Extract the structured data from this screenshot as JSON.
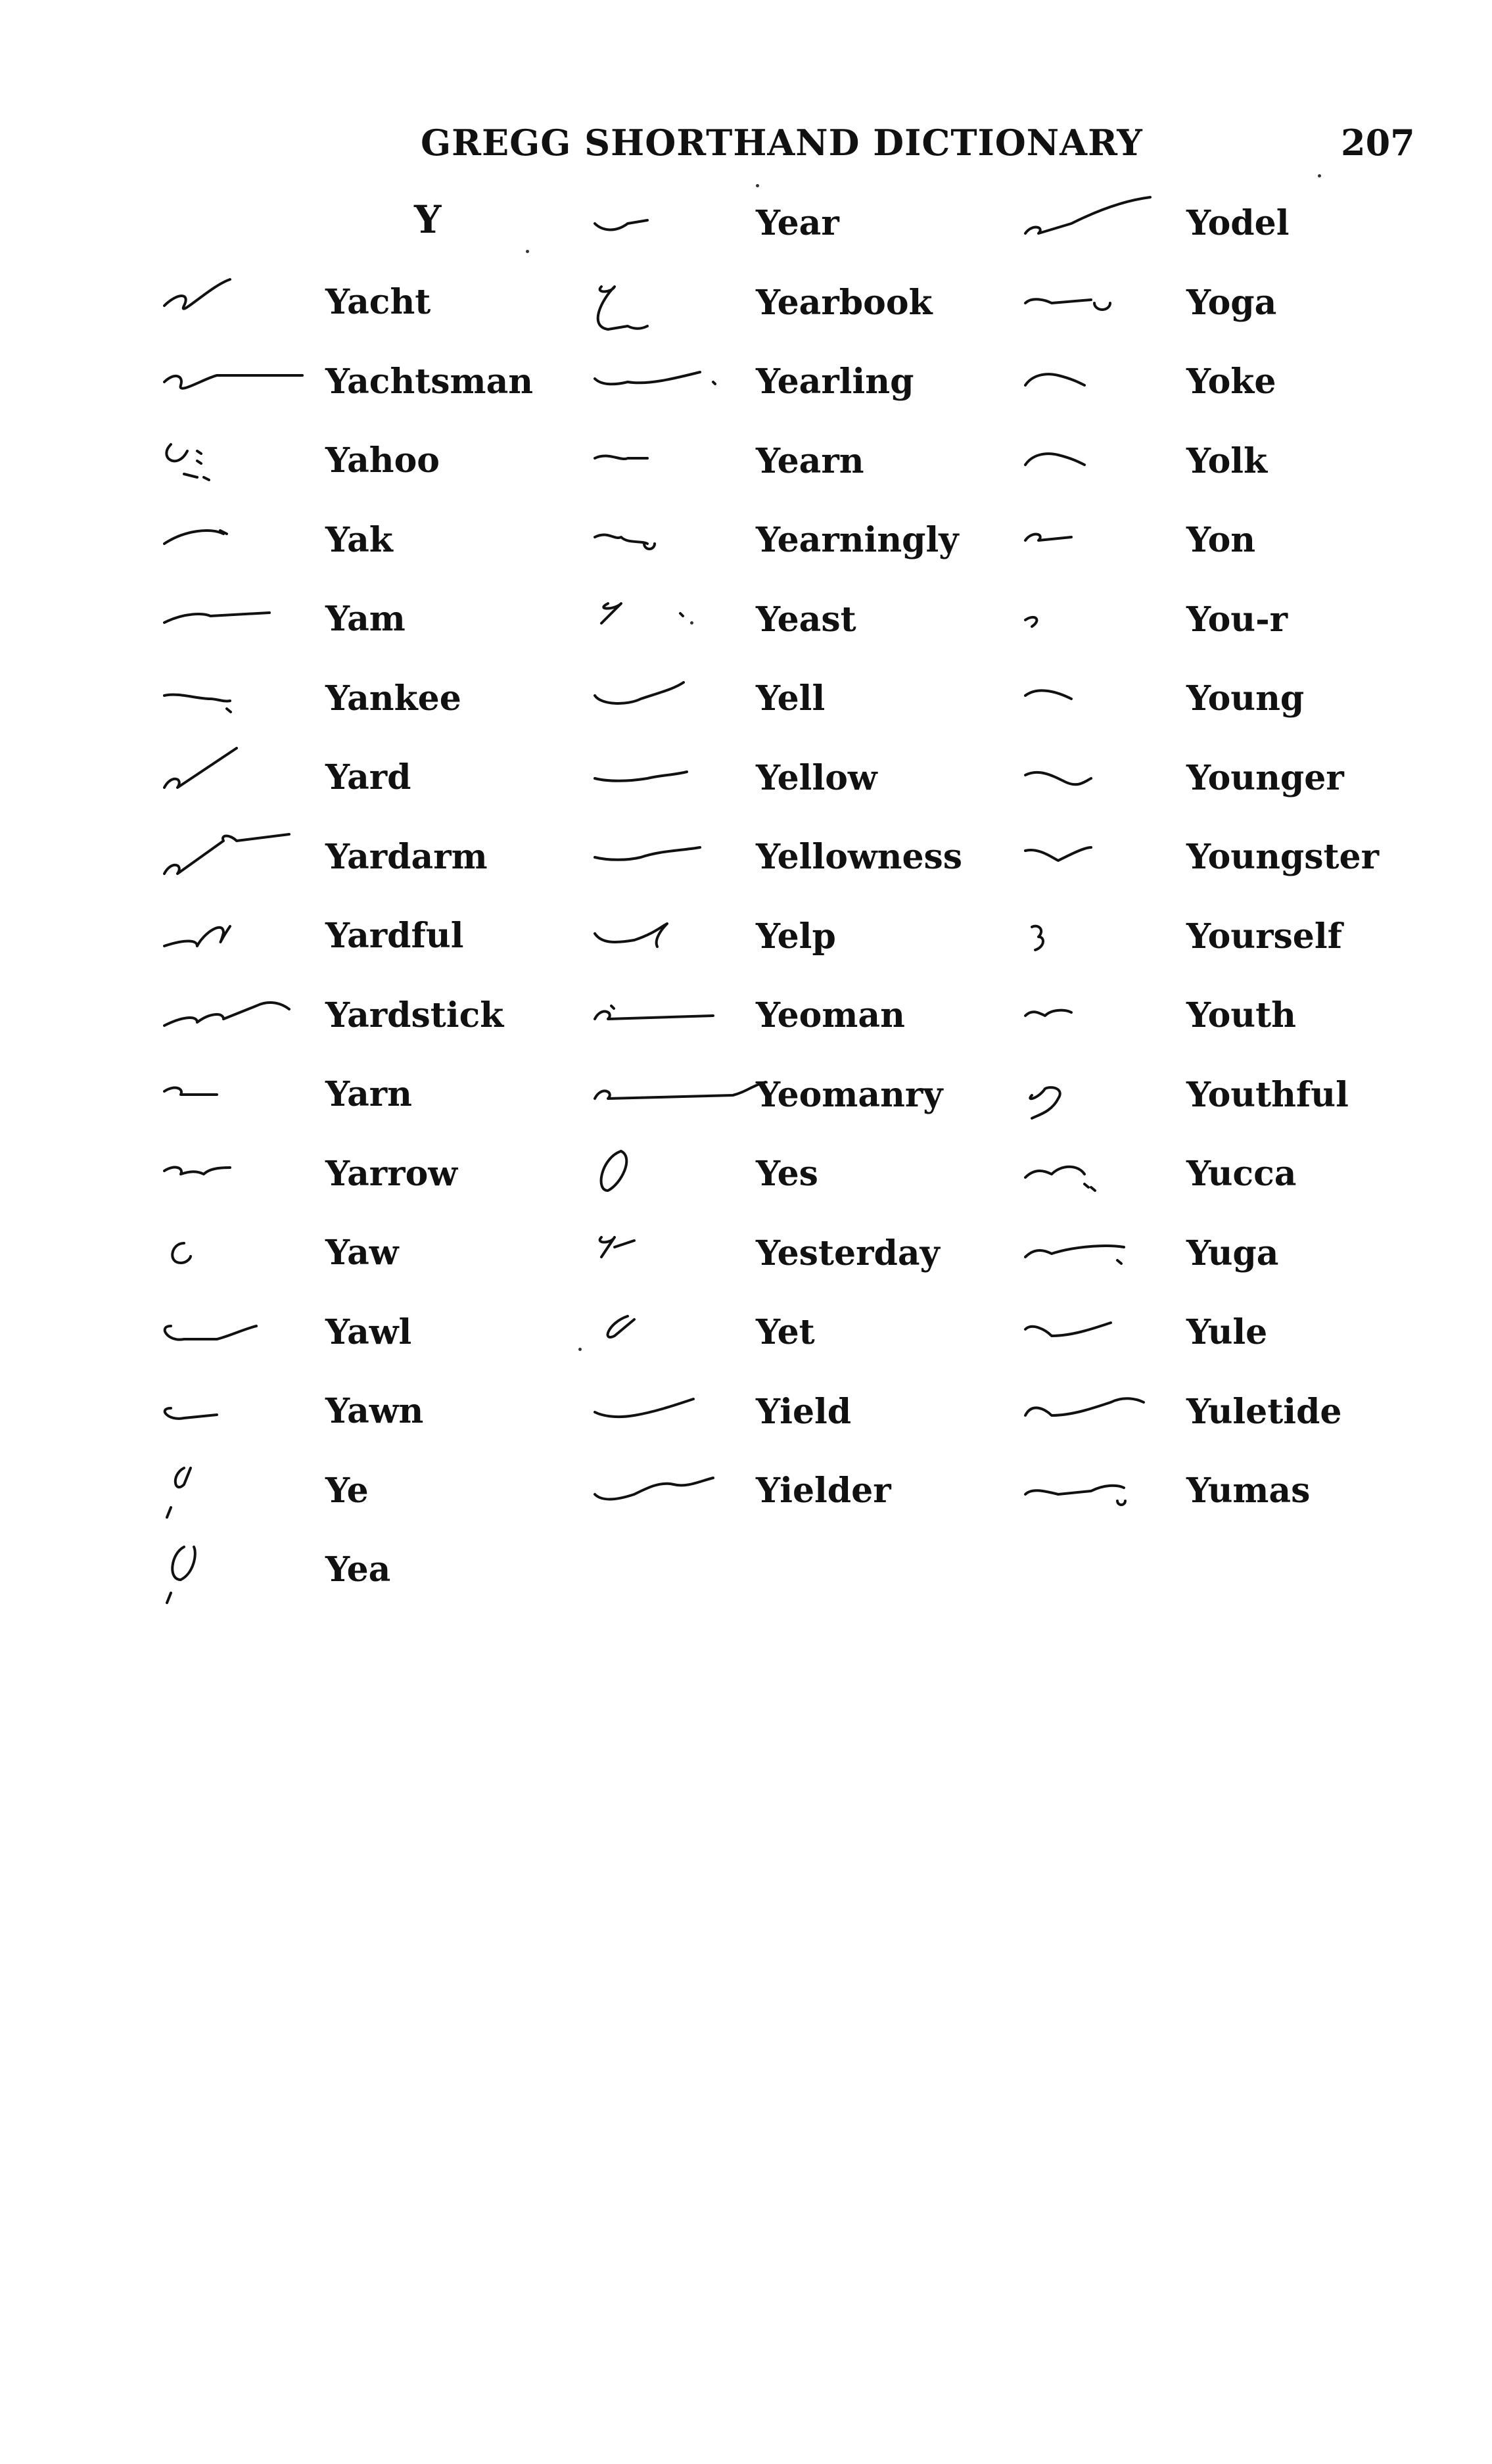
{
  "header": {
    "title": "GREGG SHORTHAND DICTIONARY",
    "page_number": "207"
  },
  "section_letter": "Y",
  "columns": [
    {
      "entries": [
        {
          "word": "Yacht"
        },
        {
          "word": "Yachtsman"
        },
        {
          "word": "Yahoo"
        },
        {
          "word": "Yak"
        },
        {
          "word": "Yam"
        },
        {
          "word": "Yankee"
        },
        {
          "word": "Yard"
        },
        {
          "word": "Yardarm"
        },
        {
          "word": "Yardful"
        },
        {
          "word": "Yardstick"
        },
        {
          "word": "Yarn"
        },
        {
          "word": "Yarrow"
        },
        {
          "word": "Yaw"
        },
        {
          "word": "Yawl"
        },
        {
          "word": "Yawn"
        },
        {
          "word": "Ye"
        },
        {
          "word": "Yea"
        }
      ]
    },
    {
      "entries": [
        {
          "word": "Year"
        },
        {
          "word": "Yearbook"
        },
        {
          "word": "Yearling"
        },
        {
          "word": "Yearn"
        },
        {
          "word": "Yearningly"
        },
        {
          "word": "Yeast"
        },
        {
          "word": "Yell"
        },
        {
          "word": "Yellow"
        },
        {
          "word": "Yellowness"
        },
        {
          "word": "Yelp"
        },
        {
          "word": "Yeoman"
        },
        {
          "word": "Yeomanry"
        },
        {
          "word": "Yes"
        },
        {
          "word": "Yesterday"
        },
        {
          "word": "Yet"
        },
        {
          "word": "Yield"
        },
        {
          "word": "Yielder"
        }
      ]
    },
    {
      "entries": [
        {
          "word": "Yodel"
        },
        {
          "word": "Yoga"
        },
        {
          "word": "Yoke"
        },
        {
          "word": "Yolk"
        },
        {
          "word": "Yon"
        },
        {
          "word": "You-r"
        },
        {
          "word": "Young"
        },
        {
          "word": "Younger"
        },
        {
          "word": "Youngster"
        },
        {
          "word": "Yourself"
        },
        {
          "word": "Youth"
        },
        {
          "word": "Youthful"
        },
        {
          "word": "Yucca"
        },
        {
          "word": "Yuga"
        },
        {
          "word": "Yule"
        },
        {
          "word": "Yuletide"
        },
        {
          "word": "Yumas"
        }
      ]
    }
  ]
}
